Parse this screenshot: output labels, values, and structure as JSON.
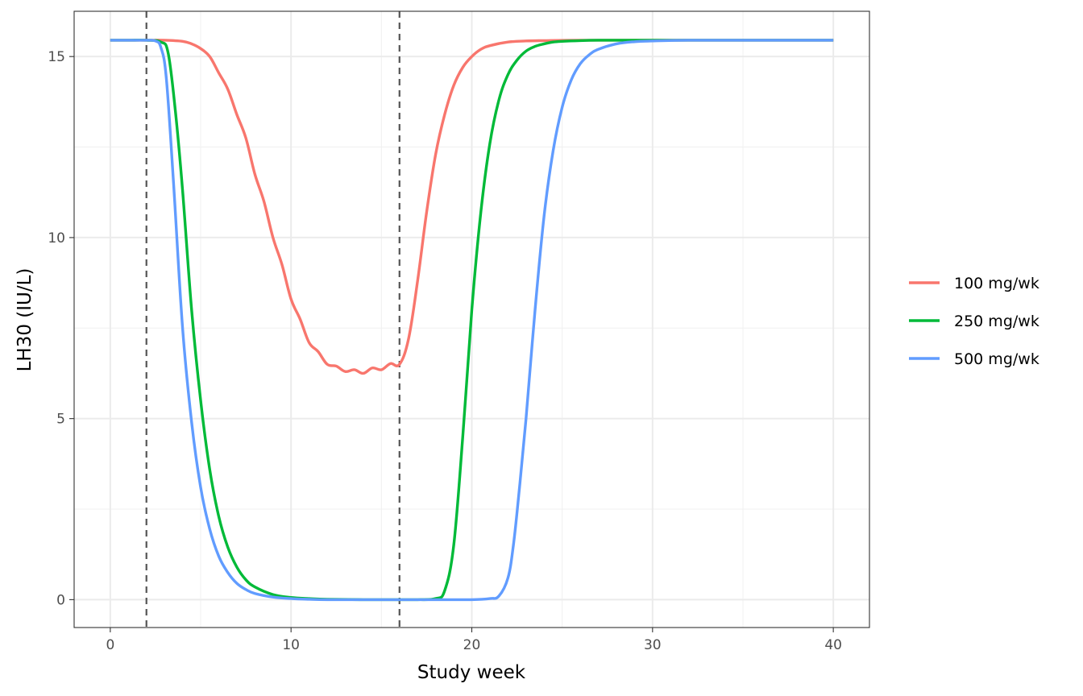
{
  "chart_data": {
    "type": "line",
    "title": "",
    "xlabel": "Study week",
    "ylabel": "LH30 (IU/L)",
    "xlim": [
      -2,
      42
    ],
    "ylim": [
      -0.77,
      16.25
    ],
    "x_ticks": [
      0,
      10,
      20,
      30,
      40
    ],
    "y_ticks": [
      0,
      5,
      10,
      15
    ],
    "x_tick_labels": [
      "0",
      "10",
      "20",
      "30",
      "40"
    ],
    "y_tick_labels": [
      "0",
      "5",
      "10",
      "15"
    ],
    "x_minor_ticks": [
      5,
      15,
      25,
      35
    ],
    "y_minor_ticks": [
      2.5,
      7.5,
      12.5
    ],
    "grid": true,
    "theme": "bw",
    "legend_position": "right",
    "vlines": [
      {
        "x": 2,
        "style": "dashed",
        "color": "#555555"
      },
      {
        "x": 16,
        "style": "dashed",
        "color": "#555555"
      }
    ],
    "series": [
      {
        "name": "100 mg/wk",
        "color": "#F8766D",
        "x": [
          0,
          1,
          2,
          3,
          4,
          4.5,
          5,
          5.5,
          6,
          6.5,
          7,
          7.5,
          8,
          8.5,
          9,
          9.5,
          10,
          10.5,
          11,
          11.5,
          12,
          12.5,
          13,
          13.5,
          14,
          14.5,
          15,
          15.5,
          16,
          16.5,
          17,
          17.5,
          18,
          18.5,
          19,
          19.5,
          20,
          20.5,
          21,
          22,
          23,
          24,
          26,
          30,
          35,
          40
        ],
        "y": [
          15.45,
          15.45,
          15.45,
          15.45,
          15.42,
          15.35,
          15.22,
          15.0,
          14.55,
          14.1,
          13.4,
          12.75,
          11.75,
          11.0,
          10.0,
          9.25,
          8.3,
          7.75,
          7.1,
          6.85,
          6.5,
          6.45,
          6.3,
          6.35,
          6.25,
          6.4,
          6.35,
          6.52,
          6.5,
          7.2,
          8.8,
          10.7,
          12.3,
          13.4,
          14.2,
          14.7,
          15.0,
          15.2,
          15.3,
          15.4,
          15.43,
          15.44,
          15.45,
          15.45,
          15.45,
          15.45
        ]
      },
      {
        "name": "250 mg/wk",
        "color": "#00BA38",
        "x": [
          0,
          1,
          2,
          2.8,
          3.2,
          3.6,
          4,
          4.5,
          5,
          5.5,
          6,
          6.5,
          7,
          7.5,
          8,
          9,
          10,
          11,
          12,
          14,
          16,
          17,
          18,
          18.5,
          19,
          19.5,
          20,
          20.5,
          21,
          21.5,
          22,
          22.5,
          23,
          23.5,
          24,
          24.5,
          25,
          26,
          27,
          28,
          30,
          35,
          40
        ],
        "y": [
          15.45,
          15.45,
          15.45,
          15.4,
          15.1,
          13.5,
          11.3,
          8.0,
          5.5,
          3.6,
          2.3,
          1.45,
          0.9,
          0.55,
          0.35,
          0.14,
          0.06,
          0.03,
          0.01,
          0.0,
          0.0,
          0.0,
          0.03,
          0.25,
          1.5,
          4.5,
          8.0,
          10.7,
          12.6,
          13.8,
          14.5,
          14.9,
          15.15,
          15.28,
          15.35,
          15.4,
          15.42,
          15.44,
          15.45,
          15.45,
          15.45,
          15.45,
          15.45
        ]
      },
      {
        "name": "500 mg/wk",
        "color": "#619CFF",
        "x": [
          0,
          1,
          2,
          2.5,
          2.8,
          3.1,
          3.5,
          4,
          4.5,
          5,
          5.5,
          6,
          6.5,
          7,
          7.5,
          8,
          9,
          10,
          11,
          12,
          14,
          16,
          18,
          20,
          21,
          21.5,
          22,
          22.3,
          22.6,
          23,
          23.5,
          24,
          24.5,
          25,
          25.5,
          26,
          26.5,
          27,
          28,
          29,
          30,
          32,
          35,
          40
        ],
        "y": [
          15.45,
          15.45,
          15.45,
          15.43,
          15.25,
          14.4,
          11.5,
          7.5,
          4.9,
          3.1,
          1.95,
          1.2,
          0.75,
          0.45,
          0.28,
          0.17,
          0.07,
          0.03,
          0.01,
          0.0,
          0.0,
          0.0,
          0.0,
          0.0,
          0.03,
          0.1,
          0.6,
          1.5,
          2.9,
          5.0,
          8.0,
          10.6,
          12.4,
          13.6,
          14.35,
          14.8,
          15.05,
          15.2,
          15.35,
          15.41,
          15.43,
          15.45,
          15.45,
          15.45
        ]
      }
    ]
  }
}
